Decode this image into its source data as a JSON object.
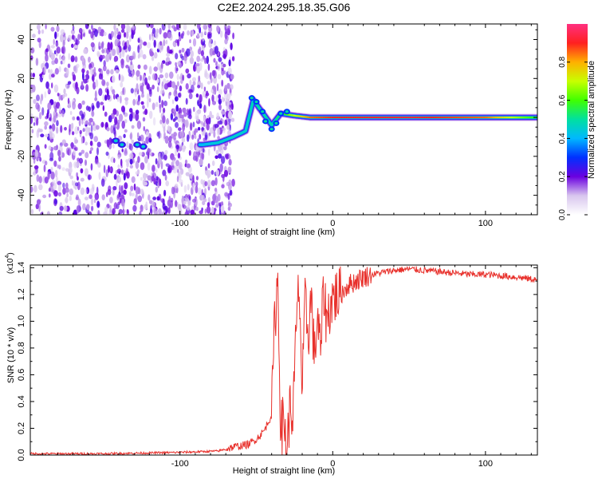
{
  "title": "C2E2.2024.295.18.35.G06",
  "chart_data": [
    {
      "type": "heatmap",
      "name": "spectrogram",
      "xlabel": "Height of straight line (km)",
      "ylabel": "Frequency (Hz)",
      "xlim": [
        -198,
        134
      ],
      "ylim": [
        -50,
        48
      ],
      "xticks": [
        -100,
        0,
        100
      ],
      "yticks": [
        -40,
        -20,
        0,
        20,
        40
      ],
      "colorbar": {
        "label": "Normalized spectral amplitude",
        "range": [
          0,
          1
        ],
        "ticks": [
          0.0,
          0.2,
          0.4,
          0.6,
          0.8
        ]
      },
      "features": {
        "noise_region_x": [
          -198,
          -65
        ],
        "signal_track": [
          {
            "x": -142,
            "y": -12,
            "amp": 0.45
          },
          {
            "x": -125,
            "y": -14,
            "amp": 0.35
          },
          {
            "x": -85,
            "y": -14,
            "amp": 0.4
          },
          {
            "x": -75,
            "y": -13,
            "amp": 0.45
          },
          {
            "x": -65,
            "y": -10,
            "amp": 0.45
          },
          {
            "x": -57,
            "y": -7,
            "amp": 0.45
          },
          {
            "x": -52,
            "y": 9,
            "amp": 0.5
          },
          {
            "x": -40,
            "y": -4,
            "amp": 0.5
          },
          {
            "x": -34,
            "y": 2,
            "amp": 0.55
          },
          {
            "x": -26,
            "y": 1,
            "amp": 0.7
          },
          {
            "x": -15,
            "y": 0,
            "amp": 0.85
          },
          {
            "x": 0,
            "y": 0,
            "amp": 0.9
          },
          {
            "x": 50,
            "y": 0,
            "amp": 0.92
          },
          {
            "x": 100,
            "y": 0,
            "amp": 0.85
          },
          {
            "x": 134,
            "y": 0,
            "amp": 0.55
          }
        ]
      }
    },
    {
      "type": "line",
      "name": "snr",
      "xlabel": "Height of straight line (km)",
      "ylabel": "SNR (10 * v/v)",
      "multiplier_label": "(x10",
      "multiplier_exp": "4",
      "xlim": [
        -198,
        134
      ],
      "ylim": [
        0,
        1.42
      ],
      "xticks": [
        -100,
        0,
        100
      ],
      "yticks": [
        0.0,
        0.2,
        0.4,
        0.6,
        0.8,
        1.0,
        1.2,
        1.4
      ],
      "series": [
        {
          "name": "SNR",
          "color": "#e8302b",
          "x": [
            -198,
            -150,
            -100,
            -75,
            -65,
            -55,
            -50,
            -45,
            -40,
            -38,
            -36,
            -34,
            -32,
            -30,
            -28,
            -26,
            -24,
            -22,
            -20,
            -18,
            -16,
            -14,
            -12,
            -10,
            -8,
            -6,
            -4,
            -2,
            0,
            5,
            10,
            15,
            20,
            30,
            40,
            50,
            60,
            70,
            80,
            90,
            100,
            110,
            120,
            134
          ],
          "y": [
            0.01,
            0.01,
            0.02,
            0.03,
            0.06,
            0.08,
            0.12,
            0.18,
            0.3,
            1.0,
            1.32,
            0.2,
            0.25,
            0.05,
            0.35,
            0.3,
            0.9,
            1.3,
            0.45,
            1.15,
            0.9,
            1.2,
            0.7,
            1.05,
            0.75,
            1.25,
            1.0,
            1.1,
            1.18,
            1.2,
            1.27,
            1.3,
            1.33,
            1.36,
            1.38,
            1.39,
            1.38,
            1.37,
            1.36,
            1.35,
            1.35,
            1.34,
            1.33,
            1.31
          ]
        }
      ]
    }
  ]
}
